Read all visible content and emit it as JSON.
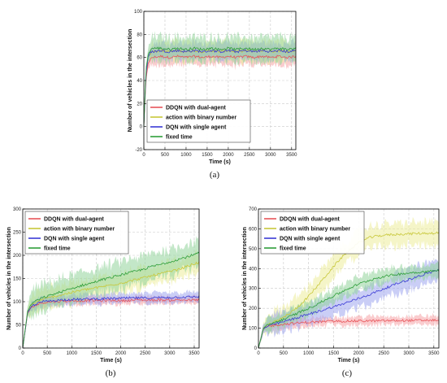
{
  "chart_data": [
    {
      "id": "a",
      "type": "line",
      "caption": "(a)",
      "xlabel": "Time (s)",
      "ylabel": "Number of vehicles in the intersection",
      "xlim": [
        0,
        3600
      ],
      "ylim": [
        -20,
        100
      ],
      "xticks": [
        0,
        500,
        1000,
        1500,
        2000,
        2500,
        3000,
        3500
      ],
      "yticks": [
        -20,
        0,
        20,
        40,
        60,
        80,
        100
      ],
      "grid": true,
      "legend_position": "bottom-left",
      "series": [
        {
          "name": "DDQN with dual-agent",
          "color": "#e8555a",
          "band_color": "#f5a3a6",
          "x": [
            0,
            50,
            100,
            150,
            200,
            400,
            600,
            800,
            1000,
            1200,
            1400,
            1600,
            1800,
            2000,
            2200,
            2400,
            2600,
            2800,
            3000,
            3200,
            3400,
            3600
          ],
          "y": [
            0,
            40,
            55,
            58,
            60,
            61,
            60,
            61,
            60,
            61,
            60,
            61,
            60,
            61,
            60,
            61,
            60,
            61,
            60,
            61,
            60,
            61
          ],
          "band": 7
        },
        {
          "name": "action with binary number",
          "color": "#c8c83a",
          "band_color": "#ecec9a",
          "x": [
            0,
            50,
            100,
            150,
            200,
            400,
            600,
            800,
            1000,
            1200,
            1400,
            1600,
            1800,
            2000,
            2200,
            2400,
            2600,
            2800,
            3000,
            3200,
            3400,
            3600
          ],
          "y": [
            0,
            45,
            60,
            63,
            65,
            66,
            65,
            66,
            65,
            66,
            65,
            66,
            65,
            66,
            65,
            66,
            65,
            66,
            65,
            66,
            65,
            66
          ],
          "band": 8
        },
        {
          "name": "DQN with single agent",
          "color": "#3a3ad6",
          "band_color": "#9fa6ee",
          "x": [
            0,
            50,
            100,
            150,
            200,
            400,
            600,
            800,
            1000,
            1200,
            1400,
            1600,
            1800,
            2000,
            2200,
            2400,
            2600,
            2800,
            3000,
            3200,
            3400,
            3600
          ],
          "y": [
            0,
            45,
            60,
            64,
            65,
            66,
            65,
            66,
            65,
            66,
            65,
            66,
            65,
            66,
            65,
            66,
            65,
            66,
            65,
            66,
            65,
            66
          ],
          "band": 7
        },
        {
          "name": "fixed time",
          "color": "#2e9e3a",
          "band_color": "#92d39a",
          "x": [
            0,
            50,
            100,
            150,
            200,
            400,
            600,
            800,
            1000,
            1200,
            1400,
            1600,
            1800,
            2000,
            2200,
            2400,
            2600,
            2800,
            3000,
            3200,
            3400,
            3600
          ],
          "y": [
            0,
            50,
            62,
            66,
            68,
            68,
            67,
            68,
            67,
            68,
            67,
            68,
            67,
            68,
            67,
            68,
            67,
            68,
            67,
            68,
            67,
            68
          ],
          "band": 10
        }
      ]
    },
    {
      "id": "b",
      "type": "line",
      "caption": "(b)",
      "xlabel": "Time (s)",
      "ylabel": "Number of vehicles in the intersection",
      "xlim": [
        0,
        3600
      ],
      "ylim": [
        0,
        300
      ],
      "xticks": [
        0,
        500,
        1000,
        1500,
        2000,
        2500,
        3000,
        3500
      ],
      "yticks": [
        0,
        50,
        100,
        150,
        200,
        250,
        300
      ],
      "grid": true,
      "legend_position": "top-left",
      "series": [
        {
          "name": "DDQN with dual-agent",
          "color": "#e8555a",
          "band_color": "#f5a3a6",
          "x": [
            0,
            100,
            200,
            400,
            600,
            800,
            1000,
            1200,
            1400,
            1600,
            1800,
            2000,
            2200,
            2400,
            2600,
            2800,
            3000,
            3200,
            3400,
            3600
          ],
          "y": [
            0,
            75,
            90,
            98,
            100,
            101,
            102,
            102,
            103,
            102,
            103,
            102,
            103,
            104,
            103,
            104,
            103,
            104,
            103,
            104
          ],
          "band": 8
        },
        {
          "name": "action with binary number",
          "color": "#c8c83a",
          "band_color": "#ecec9a",
          "x": [
            0,
            100,
            200,
            400,
            600,
            800,
            1000,
            1200,
            1400,
            1600,
            1800,
            2000,
            2200,
            2400,
            2600,
            2800,
            3000,
            3200,
            3400,
            3600
          ],
          "y": [
            0,
            78,
            95,
            105,
            110,
            115,
            120,
            125,
            128,
            132,
            136,
            140,
            145,
            150,
            155,
            160,
            165,
            170,
            178,
            185
          ],
          "band": 22
        },
        {
          "name": "DQN with single agent",
          "color": "#3a3ad6",
          "band_color": "#9fa6ee",
          "x": [
            0,
            100,
            200,
            400,
            600,
            800,
            1000,
            1200,
            1400,
            1600,
            1800,
            2000,
            2200,
            2400,
            2600,
            2800,
            3000,
            3200,
            3400,
            3600
          ],
          "y": [
            0,
            76,
            92,
            100,
            102,
            104,
            105,
            105,
            106,
            106,
            107,
            107,
            108,
            108,
            108,
            109,
            109,
            110,
            110,
            111
          ],
          "band": 10
        },
        {
          "name": "fixed time",
          "color": "#2e9e3a",
          "band_color": "#92d39a",
          "x": [
            0,
            100,
            200,
            400,
            600,
            800,
            1000,
            1200,
            1400,
            1600,
            1800,
            2000,
            2200,
            2400,
            2600,
            2800,
            3000,
            3200,
            3400,
            3600
          ],
          "y": [
            0,
            80,
            98,
            108,
            115,
            122,
            128,
            135,
            140,
            147,
            152,
            158,
            163,
            168,
            175,
            180,
            186,
            192,
            198,
            205
          ],
          "band": 28
        }
      ]
    },
    {
      "id": "c",
      "type": "line",
      "caption": "(c)",
      "xlabel": "Time (s)",
      "ylabel": "Number of vehicles in the intersection",
      "xlim": [
        0,
        3600
      ],
      "ylim": [
        0,
        700
      ],
      "xticks": [
        0,
        500,
        1000,
        1500,
        2000,
        2500,
        3000,
        3500
      ],
      "yticks": [
        0,
        100,
        200,
        300,
        400,
        500,
        600,
        700
      ],
      "grid": true,
      "legend_position": "top-left",
      "series": [
        {
          "name": "DDQN with dual-agent",
          "color": "#e8555a",
          "band_color": "#f5a3a6",
          "x": [
            0,
            100,
            200,
            400,
            600,
            800,
            1000,
            1200,
            1400,
            1600,
            1800,
            2000,
            2200,
            2400,
            2600,
            2800,
            3000,
            3200,
            3400,
            3600
          ],
          "y": [
            0,
            95,
            110,
            118,
            122,
            126,
            130,
            132,
            134,
            135,
            136,
            136,
            137,
            137,
            138,
            138,
            139,
            139,
            140,
            140
          ],
          "band": 22
        },
        {
          "name": "action with binary number",
          "color": "#c8c83a",
          "band_color": "#ecec9a",
          "x": [
            0,
            100,
            200,
            400,
            600,
            800,
            1000,
            1200,
            1400,
            1600,
            1800,
            2000,
            2200,
            2400,
            2600,
            2800,
            3000,
            3200,
            3400,
            3600
          ],
          "y": [
            0,
            100,
            118,
            140,
            170,
            210,
            260,
            320,
            380,
            440,
            490,
            530,
            555,
            565,
            570,
            573,
            575,
            577,
            578,
            580
          ],
          "band": 55
        },
        {
          "name": "DQN with single agent",
          "color": "#3a3ad6",
          "band_color": "#9fa6ee",
          "x": [
            0,
            100,
            200,
            400,
            600,
            800,
            1000,
            1200,
            1400,
            1600,
            1800,
            2000,
            2200,
            2400,
            2600,
            2800,
            3000,
            3200,
            3400,
            3600
          ],
          "y": [
            0,
            98,
            112,
            125,
            140,
            155,
            170,
            185,
            200,
            215,
            232,
            250,
            268,
            288,
            308,
            328,
            345,
            362,
            378,
            395
          ],
          "band": 50
        },
        {
          "name": "fixed time",
          "color": "#2e9e3a",
          "band_color": "#92d39a",
          "x": [
            0,
            100,
            200,
            400,
            600,
            800,
            1000,
            1200,
            1400,
            1600,
            1800,
            2000,
            2200,
            2400,
            2600,
            2800,
            3000,
            3200,
            3400,
            3600
          ],
          "y": [
            0,
            100,
            118,
            135,
            155,
            178,
            200,
            225,
            250,
            275,
            300,
            322,
            340,
            355,
            365,
            372,
            378,
            382,
            386,
            390
          ],
          "band": 35
        }
      ]
    }
  ]
}
